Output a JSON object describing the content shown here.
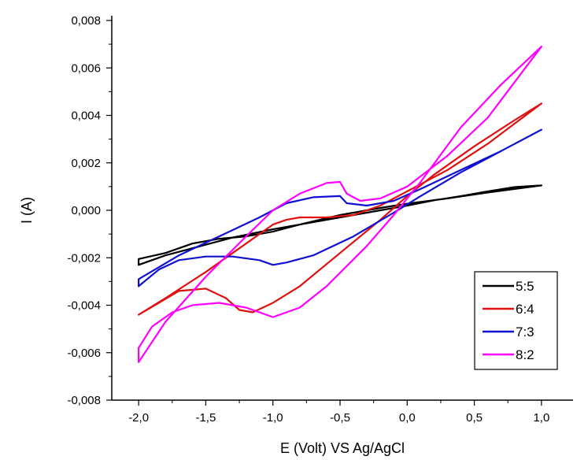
{
  "chart_data": {
    "type": "line",
    "title": "",
    "xlabel": "E (Volt) VS Ag/AgCl",
    "ylabel": "I (A)",
    "xlim": [
      -2.2,
      1.2
    ],
    "ylim": [
      -0.008,
      0.008
    ],
    "xticks": [
      -2.0,
      -1.5,
      -1.0,
      -0.5,
      0.0,
      0.5,
      1.0
    ],
    "xtick_labels": [
      "-2,0",
      "-1,5",
      "-1,0",
      "-0,5",
      "0,0",
      "0,5",
      "1,0"
    ],
    "yticks": [
      -0.008,
      -0.006,
      -0.004,
      -0.002,
      0.0,
      0.002,
      0.004,
      0.006,
      0.008
    ],
    "ytick_labels": [
      "-0,008",
      "-0,006",
      "-0,004",
      "-0,002",
      "0,000",
      "0,002",
      "0,004",
      "0,006",
      "0,008"
    ],
    "grid": false,
    "legend_position": "bottom-right",
    "series": [
      {
        "name": "5:5",
        "color": "#000000",
        "points": [
          [
            1.0,
            0.00105
          ],
          [
            0.8,
            0.00098
          ],
          [
            0.6,
            0.0008
          ],
          [
            0.4,
            0.0006
          ],
          [
            0.2,
            0.00042
          ],
          [
            0.0,
            0.0002
          ],
          [
            -0.3,
            -0.0001
          ],
          [
            -0.6,
            -0.0004
          ],
          [
            -1.0,
            -0.0008
          ],
          [
            -1.3,
            -0.00115
          ],
          [
            -1.6,
            -0.0016
          ],
          [
            -1.8,
            -0.0019
          ],
          [
            -2.0,
            -0.0023
          ],
          [
            -2.0,
            -0.00205
          ],
          [
            -1.8,
            -0.0018
          ],
          [
            -1.6,
            -0.0014
          ],
          [
            -1.4,
            -0.0012
          ],
          [
            -1.2,
            -0.0011
          ],
          [
            -1.0,
            -0.0009
          ],
          [
            -0.8,
            -0.0006
          ],
          [
            -0.5,
            -0.0002
          ],
          [
            -0.2,
            0.0001
          ],
          [
            0.0,
            0.00028
          ],
          [
            0.3,
            0.0005
          ],
          [
            0.6,
            0.00075
          ],
          [
            0.8,
            0.0009
          ],
          [
            1.0,
            0.00105
          ]
        ]
      },
      {
        "name": "6:4",
        "color": "#e01010",
        "points": [
          [
            1.0,
            0.0045
          ],
          [
            0.8,
            0.0038
          ],
          [
            0.5,
            0.0027
          ],
          [
            0.2,
            0.0015
          ],
          [
            0.0,
            0.0006
          ],
          [
            -0.2,
            -0.0004
          ],
          [
            -0.5,
            -0.0018
          ],
          [
            -0.8,
            -0.0032
          ],
          [
            -1.0,
            -0.0039
          ],
          [
            -1.15,
            -0.0043
          ],
          [
            -1.25,
            -0.0042
          ],
          [
            -1.35,
            -0.0037
          ],
          [
            -1.5,
            -0.0033
          ],
          [
            -1.7,
            -0.0034
          ],
          [
            -1.85,
            -0.0039
          ],
          [
            -2.0,
            -0.0044
          ],
          [
            -1.8,
            -0.0037
          ],
          [
            -1.5,
            -0.0026
          ],
          [
            -1.2,
            -0.0014
          ],
          [
            -1.0,
            -0.0006
          ],
          [
            -0.9,
            -0.0004
          ],
          [
            -0.8,
            -0.0003
          ],
          [
            -0.6,
            -0.0003
          ],
          [
            -0.4,
            -0.0002
          ],
          [
            -0.2,
            0.0002
          ],
          [
            0.0,
            0.0008
          ],
          [
            0.3,
            0.0017
          ],
          [
            0.6,
            0.0028
          ],
          [
            1.0,
            0.0045
          ]
        ]
      },
      {
        "name": "7:3",
        "color": "#1010d0",
        "points": [
          [
            1.0,
            0.0034
          ],
          [
            0.7,
            0.0025
          ],
          [
            0.4,
            0.0016
          ],
          [
            0.1,
            0.0006
          ],
          [
            -0.1,
            -0.0001
          ],
          [
            -0.4,
            -0.0011
          ],
          [
            -0.7,
            -0.0019
          ],
          [
            -0.9,
            -0.0022
          ],
          [
            -1.0,
            -0.0023
          ],
          [
            -1.1,
            -0.0021
          ],
          [
            -1.3,
            -0.00195
          ],
          [
            -1.5,
            -0.00195
          ],
          [
            -1.7,
            -0.0021
          ],
          [
            -1.85,
            -0.0025
          ],
          [
            -2.0,
            -0.0032
          ],
          [
            -2.0,
            -0.0029
          ],
          [
            -1.7,
            -0.0019
          ],
          [
            -1.4,
            -0.0011
          ],
          [
            -1.1,
            -0.0003
          ],
          [
            -0.9,
            0.0003
          ],
          [
            -0.7,
            0.00055
          ],
          [
            -0.5,
            0.0006
          ],
          [
            -0.45,
            0.0003
          ],
          [
            -0.3,
            0.0002
          ],
          [
            -0.1,
            0.0004
          ],
          [
            0.1,
            0.0009
          ],
          [
            0.4,
            0.0017
          ],
          [
            0.7,
            0.0025
          ],
          [
            1.0,
            0.0034
          ]
        ]
      },
      {
        "name": "8:2",
        "color": "#ff00ff",
        "points": [
          [
            1.0,
            0.0069
          ],
          [
            0.7,
            0.0053
          ],
          [
            0.4,
            0.0035
          ],
          [
            0.1,
            0.0012
          ],
          [
            -0.1,
            -0.0002
          ],
          [
            -0.3,
            -0.0015
          ],
          [
            -0.6,
            -0.0032
          ],
          [
            -0.8,
            -0.0041
          ],
          [
            -1.0,
            -0.0045
          ],
          [
            -1.1,
            -0.0043
          ],
          [
            -1.2,
            -0.0041
          ],
          [
            -1.4,
            -0.0039
          ],
          [
            -1.6,
            -0.004
          ],
          [
            -1.75,
            -0.0043
          ],
          [
            -1.9,
            -0.0049
          ],
          [
            -2.0,
            -0.0058
          ],
          [
            -2.0,
            -0.0064
          ],
          [
            -1.8,
            -0.0047
          ],
          [
            -1.5,
            -0.0028
          ],
          [
            -1.2,
            -0.0011
          ],
          [
            -1.0,
            0.0
          ],
          [
            -0.8,
            0.0007
          ],
          [
            -0.6,
            0.00115
          ],
          [
            -0.5,
            0.0012
          ],
          [
            -0.45,
            0.0007
          ],
          [
            -0.35,
            0.0004
          ],
          [
            -0.2,
            0.0005
          ],
          [
            0.0,
            0.001
          ],
          [
            0.3,
            0.0023
          ],
          [
            0.6,
            0.0039
          ],
          [
            1.0,
            0.0069
          ]
        ]
      }
    ]
  }
}
